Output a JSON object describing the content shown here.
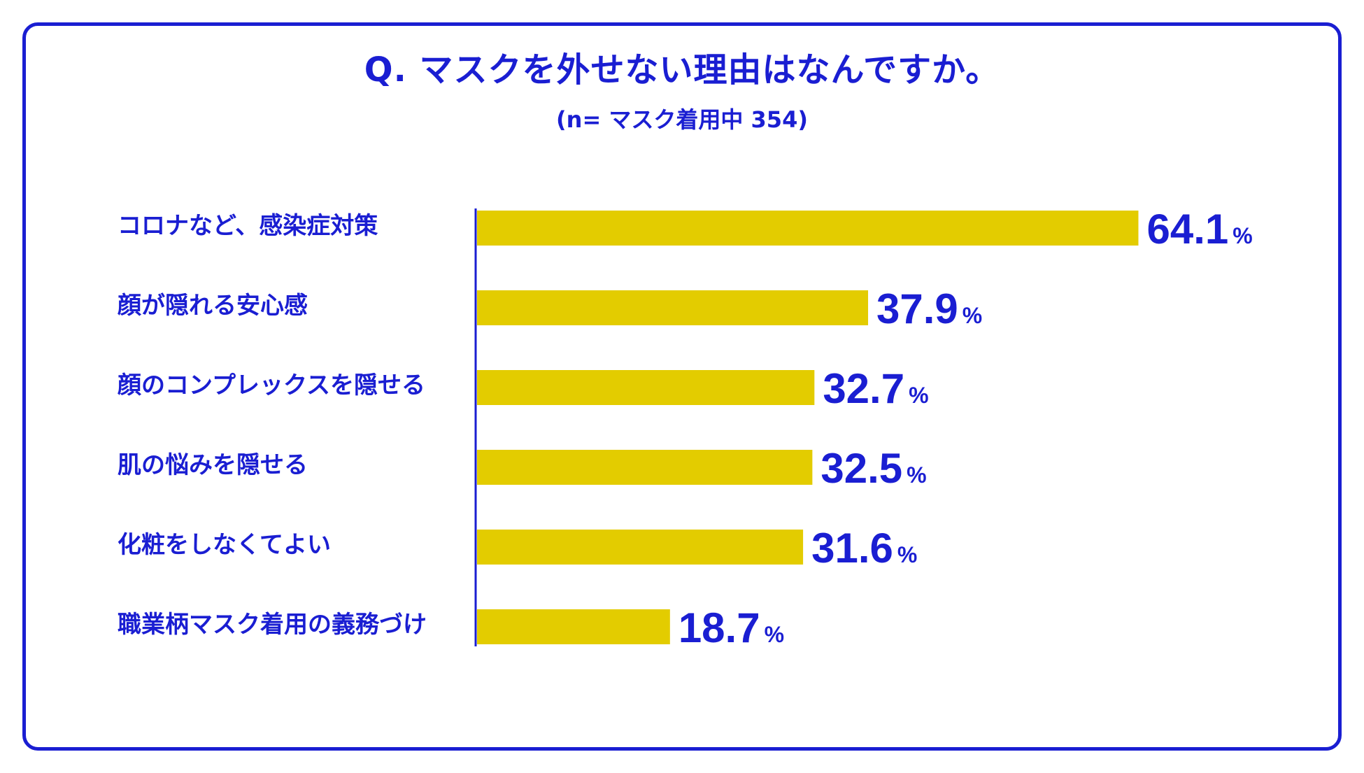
{
  "colors": {
    "accent": "#1a1ed2",
    "bar": "#e3cc00"
  },
  "chart_data": {
    "type": "bar",
    "orientation": "horizontal",
    "title": "Q. マスクを外せない理由はなんですか。",
    "subtitle": "(n= マスク着用中 354)",
    "categories": [
      "コロナなど、感染症対策",
      "顔が隠れる安心感",
      "顔のコンプレックスを隠せる",
      "肌の悩みを隠せる",
      "化粧をしなくてよい",
      "職業柄マスク着用の義務づけ"
    ],
    "values": [
      64.1,
      37.9,
      32.7,
      32.5,
      31.6,
      18.7
    ],
    "value_labels": [
      "64.1",
      "37.9",
      "32.7",
      "32.5",
      "31.6",
      "18.7"
    ],
    "unit": "%",
    "grid": false
  }
}
